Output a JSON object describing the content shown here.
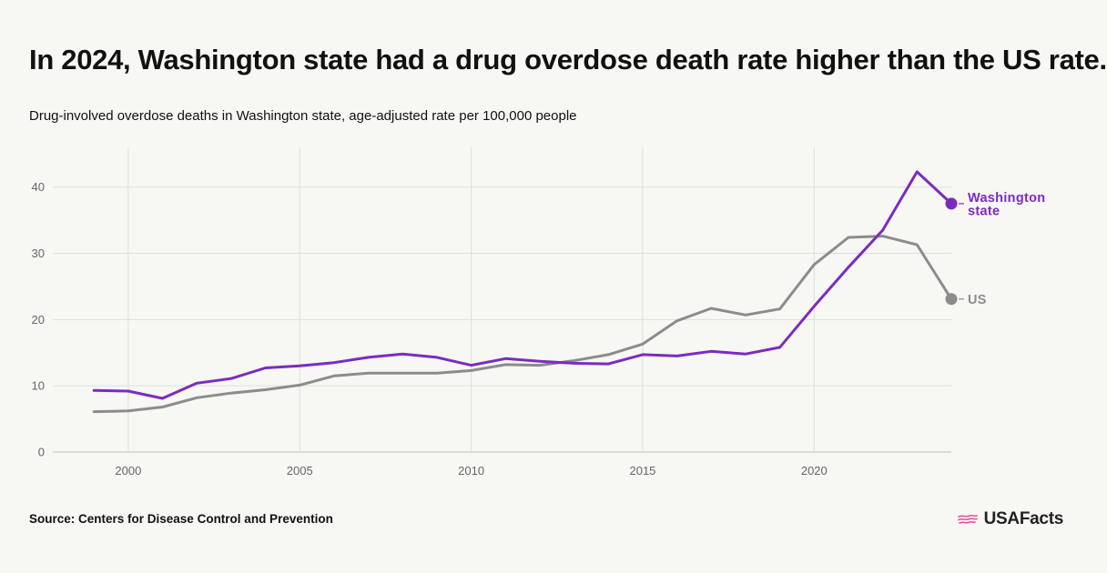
{
  "header": {
    "title": "In 2024, Washington state had a drug overdose death rate higher than the US rate.",
    "subtitle": "Drug-involved overdose deaths in Washington state, age-adjusted rate per 100,000 people"
  },
  "footer": {
    "source": "Source: Centers for Disease Control and Prevention",
    "logo_text": "USAFacts"
  },
  "colors": {
    "washington": "#7b2cbf",
    "us": "#8c8c8c",
    "grid": "#dededa",
    "tick": "#666666",
    "logo_flag": "#e0529c"
  },
  "chart_data": {
    "type": "line",
    "title": "In 2024, Washington state had a drug overdose death rate higher than the US rate.",
    "subtitle": "Drug-involved overdose deaths in Washington state, age-adjusted rate per 100,000 people",
    "x": [
      1999,
      2000,
      2001,
      2002,
      2003,
      2004,
      2005,
      2006,
      2007,
      2008,
      2009,
      2010,
      2011,
      2012,
      2013,
      2014,
      2015,
      2016,
      2017,
      2018,
      2019,
      2020,
      2021,
      2022,
      2023,
      2024
    ],
    "series": [
      {
        "name": "Washington state",
        "label_lines": [
          "Washington",
          "state"
        ],
        "color": "#7b2cbf",
        "values": [
          9.3,
          9.2,
          8.1,
          10.4,
          11.1,
          12.7,
          13.0,
          13.5,
          14.3,
          14.8,
          14.3,
          13.1,
          14.1,
          13.7,
          13.4,
          13.3,
          14.7,
          14.5,
          15.2,
          14.8,
          15.8,
          22.0,
          27.9,
          33.5,
          42.3,
          37.5
        ]
      },
      {
        "name": "US",
        "label_lines": [
          "US"
        ],
        "color": "#8c8c8c",
        "values": [
          6.1,
          6.2,
          6.8,
          8.2,
          8.9,
          9.4,
          10.1,
          11.5,
          11.9,
          11.9,
          11.9,
          12.3,
          13.2,
          13.1,
          13.8,
          14.7,
          16.3,
          19.8,
          21.7,
          20.7,
          21.6,
          28.3,
          32.4,
          32.6,
          31.3,
          23.1
        ]
      }
    ],
    "xticks": [
      2000,
      2005,
      2010,
      2015,
      2020
    ],
    "yticks": [
      0,
      10,
      20,
      30,
      40
    ],
    "xlim": [
      1997.8,
      2024
    ],
    "ylim": [
      0,
      46
    ],
    "grid": true,
    "legend": "end-of-line labels"
  }
}
